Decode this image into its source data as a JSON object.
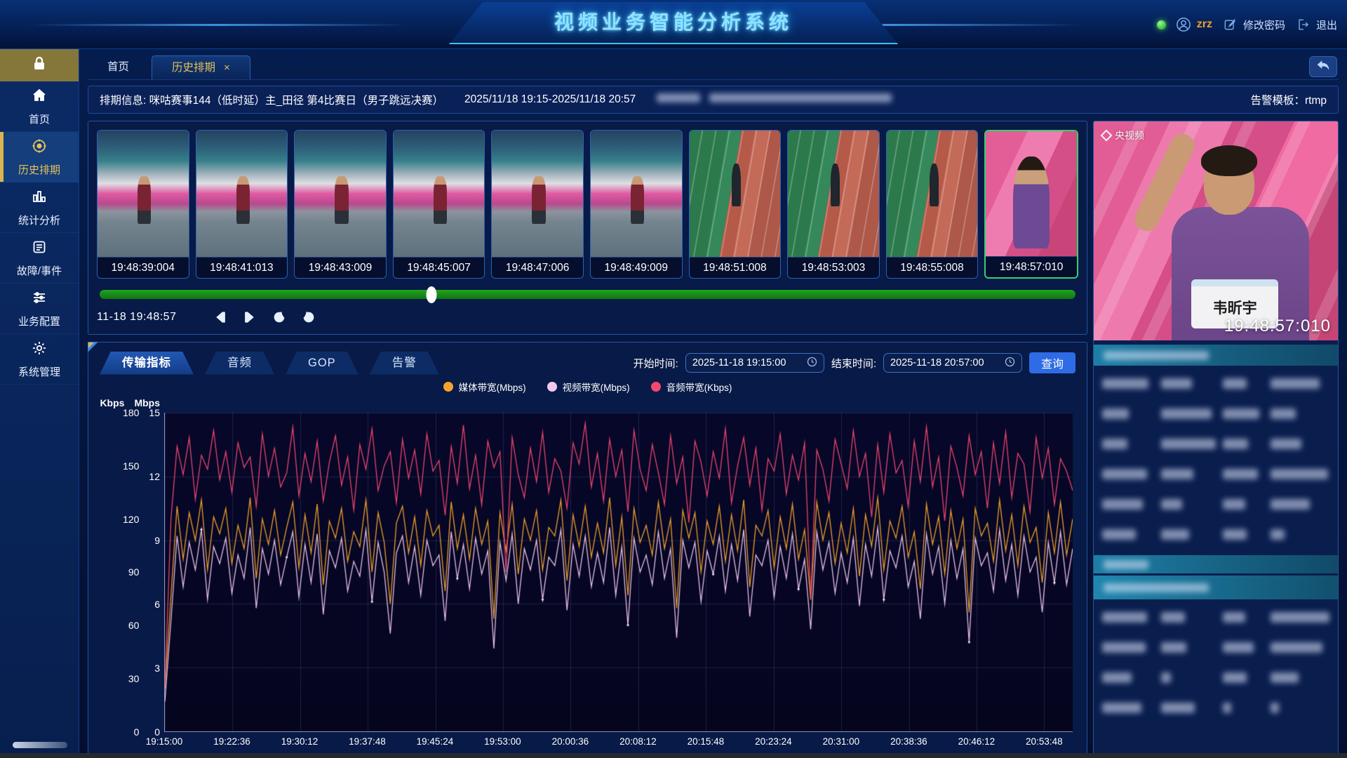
{
  "header": {
    "title": "视频业务智能分析系统",
    "username": "zrz",
    "change_password_label": "修改密码",
    "logout_label": "退出",
    "status_dot_color": "#45d145"
  },
  "sidebar": {
    "items": [
      {
        "label": "首页",
        "active": false
      },
      {
        "label": "历史排期",
        "active": true
      },
      {
        "label": "统计分析",
        "active": false
      },
      {
        "label": "故障/事件",
        "active": false
      },
      {
        "label": "业务配置",
        "active": false
      },
      {
        "label": "系统管理",
        "active": false
      }
    ],
    "active_color": "#e6c15a"
  },
  "page_tabs": {
    "home": "首页",
    "history": "历史排期",
    "close_glyph": "×"
  },
  "info_bar": {
    "schedule_text": "排期信息: 咪咕赛事144（低时延）主_田径 第4比赛日（男子跳远决赛）",
    "time_range": "2025/11/18 19:15-2025/11/18 20:57",
    "stream_url_redacted": true,
    "alarm_template": "告警模板：rtmp"
  },
  "thumbnails": {
    "items": [
      {
        "time": "19:48:39:004",
        "variant": "a",
        "selected": false
      },
      {
        "time": "19:48:41:013",
        "variant": "a",
        "selected": false
      },
      {
        "time": "19:48:43:009",
        "variant": "a",
        "selected": false
      },
      {
        "time": "19:48:45:007",
        "variant": "a",
        "selected": false
      },
      {
        "time": "19:48:47:006",
        "variant": "a",
        "selected": false
      },
      {
        "time": "19:48:49:009",
        "variant": "a",
        "selected": false
      },
      {
        "time": "19:48:51:008",
        "variant": "b",
        "selected": false
      },
      {
        "time": "19:48:53:003",
        "variant": "b",
        "selected": false
      },
      {
        "time": "19:48:55:008",
        "variant": "b",
        "selected": false
      },
      {
        "time": "19:48:57:010",
        "variant": "c",
        "selected": true
      }
    ],
    "selected_border_color": "#35d06e"
  },
  "player": {
    "current_time": "11-18 19:48:57",
    "slider_percent": 34,
    "slider_color": "#1da51d"
  },
  "preview": {
    "watermark": "央视频",
    "athlete_name": "韦昕宇",
    "timestamp": "19:48:57:010",
    "info_sections_redacted": true
  },
  "query_bar": {
    "tabs": [
      "传输指标",
      "音频",
      "GOP",
      "告警"
    ],
    "active_tab": "传输指标",
    "start_label": "开始时间:",
    "start_value": "2025-11-18 19:15:00",
    "end_label": "结束时间:",
    "end_value": "2025-11-18 20:57:00",
    "query_label": "查询",
    "query_button_color": "#2e6be6"
  },
  "chart_data": {
    "type": "line",
    "grid": true,
    "legend_position": "top",
    "y_axes": [
      {
        "label": "Kbps",
        "range": [
          0,
          180
        ],
        "ticks": [
          180,
          150,
          120,
          90,
          60,
          30,
          0
        ]
      },
      {
        "label": "Mbps",
        "range": [
          0,
          15
        ],
        "ticks": [
          15,
          12,
          9,
          6,
          3,
          0
        ]
      }
    ],
    "x_ticks": [
      "19:15:00",
      "19:22:36",
      "19:30:12",
      "19:37:48",
      "19:45:24",
      "19:53:00",
      "20:00:36",
      "20:08:12",
      "20:15:48",
      "20:23:24",
      "20:31:00",
      "20:38:36",
      "20:46:12",
      "20:53:48"
    ],
    "x_last_tick_fraction": 0.9686,
    "series": [
      {
        "name": "媒体带宽(Mbps)",
        "color": "#f5a52b",
        "axis": "Mbps",
        "values": [
          2.0,
          6.4,
          10.6,
          8.1,
          10.3,
          9.0,
          10.9,
          7.6,
          10.1,
          9.3,
          10.5,
          7.9,
          9.7,
          8.6,
          11.0,
          7.2,
          10.0,
          8.8,
          10.4,
          8.3,
          9.6,
          10.8,
          7.7,
          10.2,
          8.4,
          10.7,
          6.9,
          9.9,
          9.1,
          10.5,
          8.0,
          9.4,
          8.7,
          10.9,
          7.5,
          10.3,
          8.9,
          6.0,
          9.8,
          10.6,
          8.4,
          10.1,
          7.8,
          10.4,
          9.2,
          9.7,
          6.6,
          10.8,
          8.6,
          10.2,
          8.1,
          10.5,
          8.8,
          9.9,
          5.3,
          10.3,
          8.5,
          10.7,
          7.4,
          10.0,
          9.0,
          10.4,
          7.6,
          9.6,
          9.2,
          10.9,
          7.1,
          10.2,
          8.7,
          10.6,
          8.2,
          9.8,
          8.4,
          11.0,
          7.8,
          10.1,
          6.4,
          10.5,
          8.9,
          9.7,
          8.3,
          10.8,
          8.6,
          10.0,
          5.8,
          10.4,
          9.1,
          10.3,
          7.5,
          9.9,
          8.8,
          10.6,
          8.0,
          10.2,
          8.5,
          10.9,
          6.8,
          9.7,
          9.2,
          10.4,
          7.7,
          10.1,
          8.6,
          10.7,
          8.1,
          9.5,
          6.2,
          10.8,
          9.0,
          10.3,
          7.9,
          9.8,
          8.4,
          10.5,
          7.3,
          10.2,
          8.7,
          11.0,
          7.6,
          9.9,
          9.1,
          10.6,
          8.2,
          9.4,
          6.7,
          10.7,
          8.8,
          10.1,
          7.4,
          10.4,
          8.6,
          10.0,
          5.6,
          10.5,
          9.2,
          9.8,
          8.0,
          10.9,
          8.5,
          10.2,
          7.8,
          10.6,
          8.9,
          9.6,
          7.0,
          10.3,
          8.4,
          10.8,
          8.3,
          10.0
        ]
      },
      {
        "name": "视频带宽(Mbps)",
        "color": "#f2c8ee",
        "axis": "Mbps",
        "values": [
          1.4,
          5.2,
          9.2,
          6.8,
          8.9,
          7.6,
          9.5,
          6.2,
          8.7,
          7.9,
          9.1,
          6.5,
          8.3,
          7.2,
          9.6,
          5.8,
          8.6,
          7.4,
          9.0,
          6.9,
          8.2,
          9.4,
          6.3,
          8.8,
          7.0,
          9.3,
          5.5,
          8.5,
          7.7,
          9.1,
          6.6,
          8.0,
          7.3,
          9.5,
          6.1,
          8.9,
          7.5,
          4.6,
          8.4,
          9.2,
          7.0,
          8.7,
          6.4,
          9.0,
          7.8,
          8.3,
          5.2,
          9.4,
          7.2,
          8.8,
          6.7,
          9.1,
          7.4,
          8.5,
          3.9,
          8.9,
          7.1,
          9.3,
          6.0,
          8.6,
          7.6,
          9.0,
          6.2,
          8.2,
          7.8,
          9.5,
          5.7,
          8.8,
          7.3,
          9.2,
          6.8,
          8.4,
          7.0,
          9.6,
          6.4,
          8.7,
          5.0,
          9.1,
          7.5,
          8.3,
          6.9,
          9.4,
          7.2,
          8.6,
          4.4,
          9.0,
          7.7,
          8.9,
          6.1,
          8.5,
          7.4,
          9.2,
          6.6,
          8.8,
          7.1,
          9.5,
          5.4,
          8.3,
          7.8,
          9.0,
          6.3,
          8.7,
          7.2,
          9.3,
          6.7,
          8.1,
          4.8,
          9.4,
          7.6,
          8.9,
          6.5,
          8.4,
          7.0,
          9.1,
          5.9,
          8.8,
          7.3,
          9.6,
          6.2,
          8.5,
          7.7,
          9.2,
          6.8,
          8.0,
          5.3,
          9.3,
          7.4,
          8.7,
          6.0,
          9.0,
          7.2,
          8.6,
          4.2,
          9.1,
          7.8,
          8.4,
          6.6,
          9.5,
          7.1,
          8.8,
          6.4,
          9.2,
          7.5,
          8.2,
          5.6,
          8.9,
          7.0,
          9.4,
          6.9,
          8.6
        ]
      },
      {
        "name": "音频带宽(Kbps)",
        "color": "#f3496f",
        "axis": "Kbps",
        "values": [
          25,
          120,
          161,
          145,
          166,
          131,
          156,
          148,
          170,
          142,
          158,
          135,
          163,
          149,
          155,
          127,
          168,
          144,
          160,
          138,
          146,
          172,
          133,
          157,
          141,
          164,
          130,
          152,
          167,
          139,
          155,
          125,
          162,
          148,
          171,
          136,
          150,
          158,
          129,
          165,
          143,
          159,
          134,
          168,
          147,
          153,
          122,
          161,
          140,
          173,
          137,
          156,
          128,
          164,
          149,
          158,
          90,
          166,
          145,
          132,
          160,
          141,
          169,
          135,
          154,
          147,
          126,
          163,
          151,
          174,
          138,
          157,
          130,
          165,
          144,
          159,
          124,
          170,
          148,
          136,
          162,
          146,
          128,
          167,
          140,
          155,
          118,
          164,
          152,
          133,
          158,
          143,
          171,
          129,
          150,
          166,
          139,
          160,
          125,
          154,
          147,
          168,
          134,
          156,
          142,
          163,
          75,
          159,
          148,
          130,
          165,
          151,
          137,
          170,
          144,
          157,
          121,
          162,
          135,
          168,
          146,
          153,
          127,
          164,
          141,
          172,
          138,
          155,
          119,
          161,
          149,
          133,
          167,
          145,
          158,
          126,
          163,
          140,
          169,
          132,
          157,
          151,
          124,
          166,
          143,
          160,
          128,
          154,
          147,
          136
        ]
      }
    ]
  }
}
